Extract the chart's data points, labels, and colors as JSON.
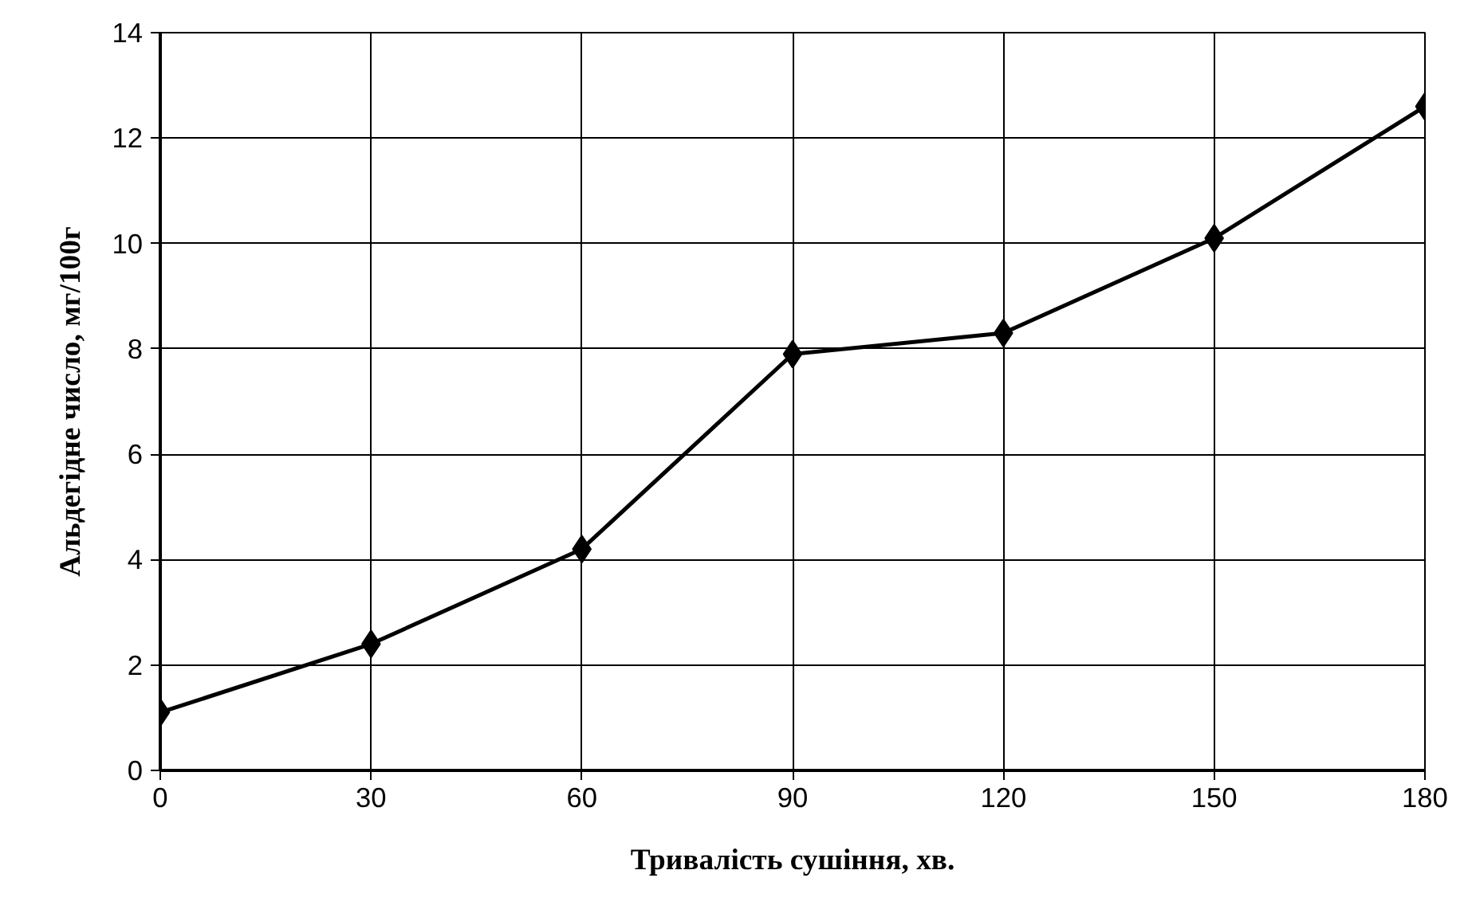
{
  "chart_data": {
    "type": "line",
    "xlabel": "Тривалість сушіння, хв.",
    "ylabel": "Альдегідне число, мг/100г",
    "x": [
      0,
      30,
      60,
      90,
      120,
      150,
      180
    ],
    "series": [
      {
        "color": "#000000",
        "values": [
          1.1,
          2.4,
          4.2,
          7.9,
          8.3,
          10.1,
          12.6
        ]
      }
    ],
    "xlim": [
      0,
      180
    ],
    "xticks": [
      0,
      30,
      60,
      90,
      120,
      150,
      180
    ],
    "ylim": [
      0,
      14
    ],
    "yticks": [
      0,
      2,
      4,
      6,
      8,
      10,
      12,
      14
    ],
    "grid": true,
    "marker": "diamond",
    "line_style": "solid"
  }
}
